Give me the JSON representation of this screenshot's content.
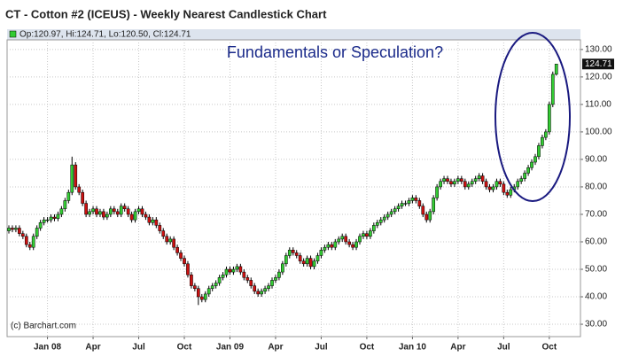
{
  "chart_data": {
    "type": "candlestick",
    "title": "CT - Cotton #2 (ICEUS) - Weekly Nearest Candlestick Chart",
    "legend": "Op:120.97, Hi:124.71, Lo:120.50, Cl:124.71",
    "annotation": "Fundamentals or Speculation?",
    "credit": "(c) Barchart.com",
    "up_color": "#33cc33",
    "down_color": "#cc1111",
    "grid": true,
    "ylim": [
      25.5,
      133.5
    ],
    "yticks": [
      {
        "value": 30,
        "label": "30.00"
      },
      {
        "value": 40,
        "label": "40.00"
      },
      {
        "value": 50,
        "label": "50.00"
      },
      {
        "value": 60,
        "label": "60.00"
      },
      {
        "value": 70,
        "label": "70.00"
      },
      {
        "value": 80,
        "label": "80.00"
      },
      {
        "value": 90,
        "label": "90.00"
      },
      {
        "value": 100,
        "label": "100.00"
      },
      {
        "value": 110,
        "label": "110.00"
      },
      {
        "value": 120,
        "label": "120.00"
      },
      {
        "value": 130,
        "label": "130.00"
      }
    ],
    "xticks": [
      {
        "value": 11,
        "label": "Jan 08"
      },
      {
        "value": 24,
        "label": "Apr"
      },
      {
        "value": 37,
        "label": "Jul"
      },
      {
        "value": 50,
        "label": "Oct"
      },
      {
        "value": 63,
        "label": "Jan 09"
      },
      {
        "value": 76,
        "label": "Apr"
      },
      {
        "value": 89,
        "label": "Jul"
      },
      {
        "value": 102,
        "label": "Oct"
      },
      {
        "value": 115,
        "label": "Jan 10"
      },
      {
        "value": 128,
        "label": "Apr"
      },
      {
        "value": 141,
        "label": "Jul"
      },
      {
        "value": 154,
        "label": "Oct"
      }
    ],
    "open": [
      64,
      65,
      64.5,
      65,
      63,
      62,
      59,
      58,
      62,
      65,
      67,
      68,
      68,
      69,
      68.5,
      70,
      72,
      75,
      78,
      88,
      80,
      78,
      74,
      70,
      71,
      72,
      70,
      71,
      69,
      70,
      72,
      71,
      70,
      73,
      72,
      70,
      68,
      71,
      72,
      70,
      69,
      67,
      68,
      66,
      64,
      62,
      60,
      61,
      58,
      56,
      54,
      52,
      48,
      44,
      43,
      40,
      39,
      41,
      43,
      44,
      45,
      47,
      48,
      50,
      49,
      50,
      51,
      49,
      47,
      46,
      44,
      42,
      41,
      42,
      43,
      44,
      46,
      47,
      49,
      52,
      55,
      57,
      56,
      55,
      53,
      52,
      54,
      51,
      53,
      55,
      57,
      58,
      59,
      58,
      60,
      61,
      62,
      60,
      59,
      58,
      60,
      62,
      63,
      62,
      64,
      66,
      67,
      68,
      69,
      70,
      71,
      72,
      73,
      74,
      74,
      75,
      76,
      75,
      73,
      70,
      68,
      71,
      76,
      80,
      82,
      83,
      82,
      81,
      82,
      83,
      82,
      80,
      81,
      82,
      83,
      84,
      82,
      80,
      79,
      80,
      82,
      81,
      78,
      77,
      79,
      80,
      82,
      83,
      85,
      87,
      89,
      91,
      95,
      98,
      100,
      110,
      120.97
    ],
    "high": [
      66,
      66,
      66,
      66,
      64,
      63,
      60,
      63,
      66,
      68,
      69,
      69,
      70,
      70,
      71,
      73,
      76,
      79,
      91,
      89,
      81,
      79,
      75,
      72,
      73,
      73,
      72,
      72,
      71,
      73,
      73,
      72,
      74,
      74,
      73,
      71,
      72,
      73,
      73,
      71,
      70,
      69,
      69,
      67,
      65,
      63,
      62,
      62,
      59,
      57,
      55,
      53,
      49,
      45,
      44,
      41,
      42,
      44,
      45,
      46,
      48,
      49,
      51,
      51,
      51,
      52,
      52,
      50,
      48,
      47,
      45,
      43,
      43,
      44,
      45,
      47,
      48,
      50,
      53,
      56,
      58,
      58,
      57,
      56,
      54,
      55,
      55,
      54,
      56,
      58,
      59,
      60,
      60,
      61,
      62,
      63,
      63,
      61,
      60,
      61,
      63,
      64,
      64,
      65,
      67,
      68,
      69,
      70,
      71,
      72,
      73,
      74,
      75,
      75,
      76,
      77,
      77,
      76,
      74,
      71,
      72,
      77,
      81,
      83,
      84,
      84,
      83,
      83,
      84,
      84,
      83,
      82,
      83,
      84,
      85,
      85,
      83,
      81,
      81,
      83,
      83,
      82,
      79,
      80,
      81,
      83,
      84,
      86,
      88,
      90,
      92,
      96,
      99,
      101,
      111,
      121.97,
      124.71
    ],
    "low": [
      63,
      63.5,
      63.5,
      62,
      61,
      58,
      57,
      57,
      61,
      64,
      66,
      67,
      67,
      67.5,
      67.5,
      69,
      71,
      74,
      77,
      79,
      77,
      73,
      69,
      69,
      70,
      69,
      69,
      68,
      68,
      69,
      70,
      69,
      69,
      71,
      69,
      67,
      67,
      70,
      69,
      68,
      66,
      66,
      65,
      63,
      61,
      59,
      59,
      57,
      55,
      53,
      51,
      47,
      43,
      42,
      37,
      38,
      38,
      40,
      42,
      43,
      44,
      46,
      47,
      48,
      48,
      49,
      48,
      46,
      45,
      43,
      41,
      40,
      40,
      41,
      42,
      43,
      45,
      46,
      48,
      51,
      54,
      55,
      54,
      52,
      51,
      51,
      50,
      50,
      52,
      54,
      56,
      57,
      57,
      57,
      59,
      60,
      59,
      58,
      57,
      57,
      59,
      61,
      61,
      61,
      63,
      65,
      66,
      67,
      68,
      69,
      70,
      71,
      72,
      73,
      73,
      74,
      74,
      72,
      69,
      67,
      67,
      70,
      75,
      79,
      81,
      81,
      80,
      80,
      81,
      81,
      79,
      79,
      80,
      81,
      82,
      81,
      79,
      78,
      78,
      79,
      80,
      77,
      76,
      76,
      78,
      79,
      81,
      82,
      84,
      86,
      88,
      90,
      94,
      97,
      99,
      109,
      120.5
    ],
    "close": [
      65,
      64.5,
      65,
      63,
      62,
      59,
      58,
      62,
      65,
      67,
      68,
      68,
      69,
      68.5,
      70,
      72,
      75,
      78,
      88,
      80,
      78,
      74,
      70,
      71,
      72,
      70,
      71,
      69,
      70,
      72,
      71,
      70,
      73,
      72,
      70,
      68,
      71,
      72,
      70,
      69,
      67,
      68,
      66,
      64,
      62,
      60,
      61,
      58,
      56,
      54,
      52,
      48,
      44,
      43,
      40,
      39,
      41,
      43,
      44,
      45,
      47,
      48,
      50,
      49,
      50,
      51,
      49,
      47,
      46,
      44,
      42,
      41,
      42,
      43,
      44,
      46,
      47,
      49,
      52,
      55,
      57,
      56,
      55,
      53,
      52,
      54,
      51,
      53,
      55,
      57,
      58,
      59,
      58,
      60,
      61,
      62,
      60,
      59,
      58,
      60,
      62,
      63,
      62,
      64,
      66,
      67,
      68,
      69,
      70,
      71,
      72,
      73,
      74,
      74,
      75,
      76,
      75,
      73,
      70,
      68,
      71,
      76,
      80,
      82,
      83,
      82,
      81,
      82,
      83,
      82,
      80,
      81,
      82,
      83,
      84,
      82,
      80,
      79,
      80,
      82,
      81,
      78,
      77,
      79,
      80,
      82,
      83,
      85,
      87,
      89,
      91,
      95,
      98,
      100,
      110,
      120.97,
      124.71
    ]
  }
}
